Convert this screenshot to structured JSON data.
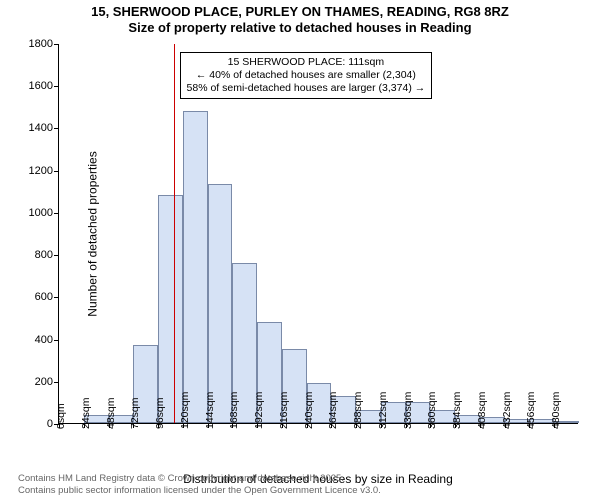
{
  "title_line1": "15, SHERWOOD PLACE, PURLEY ON THAMES, READING, RG8 8RZ",
  "title_line2": "Size of property relative to detached houses in Reading",
  "ylabel": "Number of detached properties",
  "xlabel": "Distribution of detached houses by size in Reading",
  "footer_line1": "Contains HM Land Registry data © Crown copyright and database right 2025.",
  "footer_line2": "Contains public sector information licensed under the Open Government Licence v3.0.",
  "chart": {
    "type": "histogram",
    "bar_fill": "#d6e2f5",
    "bar_border": "#7a8aa8",
    "background": "#ffffff",
    "axis_color": "#000000",
    "ylim": [
      0,
      1800
    ],
    "ytick_step": 200,
    "x_bin_width_sqm": 24,
    "x_categories": [
      "0sqm",
      "24sqm",
      "48sqm",
      "72sqm",
      "96sqm",
      "120sqm",
      "144sqm",
      "168sqm",
      "192sqm",
      "216sqm",
      "240sqm",
      "264sqm",
      "288sqm",
      "312sqm",
      "336sqm",
      "360sqm",
      "384sqm",
      "408sqm",
      "432sqm",
      "456sqm",
      "480sqm"
    ],
    "values": [
      0,
      40,
      40,
      370,
      1080,
      1480,
      1130,
      760,
      480,
      350,
      190,
      130,
      60,
      100,
      100,
      60,
      40,
      30,
      20,
      20,
      10
    ],
    "reference_line": {
      "x_sqm": 111,
      "color": "#cc0000",
      "style": "solid"
    },
    "annotation": {
      "line1": "15 SHERWOOD PLACE: 111sqm",
      "line2": "← 40% of detached houses are smaller (2,304)",
      "line3": "58% of semi-detached houses are larger (3,374) →",
      "border_color": "#000000",
      "bg": "#ffffff",
      "fontsize": 10.5
    }
  }
}
